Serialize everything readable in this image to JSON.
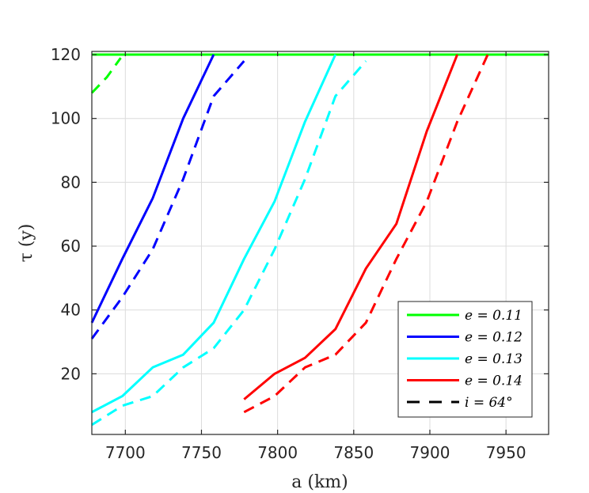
{
  "chart_data": {
    "type": "line",
    "xlabel": "a (km)",
    "ylabel": "τ (y)",
    "xlim": [
      7678,
      7978
    ],
    "ylim": [
      1,
      121
    ],
    "xticks": [
      7700,
      7750,
      7800,
      7850,
      7900,
      7950
    ],
    "yticks": [
      20,
      40,
      60,
      80,
      100,
      120
    ],
    "grid": true,
    "legend_position": "bottom-right",
    "legend": [
      "e = 0.11",
      "e = 0.12",
      "e = 0.13",
      "e = 0.14",
      "i = 64°"
    ],
    "series": [
      {
        "name": "e = 0.11",
        "color": "#00ff00",
        "style": "solid",
        "x": [
          7678,
          7978
        ],
        "y": [
          120,
          120
        ]
      },
      {
        "name": "e = 0.11",
        "color": "#00ff00",
        "style": "dashed",
        "x": [
          7678,
          7688,
          7697
        ],
        "y": [
          108,
          113,
          119
        ]
      },
      {
        "name": "e = 0.12",
        "color": "#0000ff",
        "style": "solid",
        "x": [
          7678,
          7698,
          7718,
          7738,
          7758
        ],
        "y": [
          36,
          56,
          75,
          100,
          120
        ]
      },
      {
        "name": "e = 0.12",
        "color": "#0000ff",
        "style": "dashed",
        "x": [
          7678,
          7698,
          7718,
          7738,
          7758,
          7778
        ],
        "y": [
          31,
          44,
          59,
          81,
          107,
          118
        ]
      },
      {
        "name": "e = 0.13",
        "color": "#00ffff",
        "style": "solid",
        "x": [
          7678,
          7698,
          7718,
          7738,
          7758,
          7778,
          7798,
          7818,
          7838
        ],
        "y": [
          8,
          13,
          22,
          26,
          36,
          56,
          74,
          99,
          120
        ]
      },
      {
        "name": "e = 0.13",
        "color": "#00ffff",
        "style": "dashed",
        "x": [
          7678,
          7698,
          7718,
          7738,
          7758,
          7778,
          7798,
          7818,
          7838,
          7858
        ],
        "y": [
          4,
          10,
          13,
          22,
          28,
          40,
          59,
          81,
          107,
          118
        ]
      },
      {
        "name": "e = 0.14",
        "color": "#ff0000",
        "style": "solid",
        "x": [
          7778,
          7798,
          7818,
          7838,
          7858,
          7878,
          7898,
          7918
        ],
        "y": [
          12,
          20,
          25,
          34,
          53,
          67,
          96,
          120
        ]
      },
      {
        "name": "e = 0.14",
        "color": "#ff0000",
        "style": "dashed",
        "x": [
          7778,
          7798,
          7818,
          7838,
          7858,
          7878,
          7898,
          7918,
          7938
        ],
        "y": [
          8,
          13,
          22,
          26,
          36,
          56,
          74,
          99,
          120
        ]
      }
    ],
    "legend_colors": [
      "#00ff00",
      "#0000ff",
      "#00ffff",
      "#ff0000",
      "#000000"
    ]
  }
}
